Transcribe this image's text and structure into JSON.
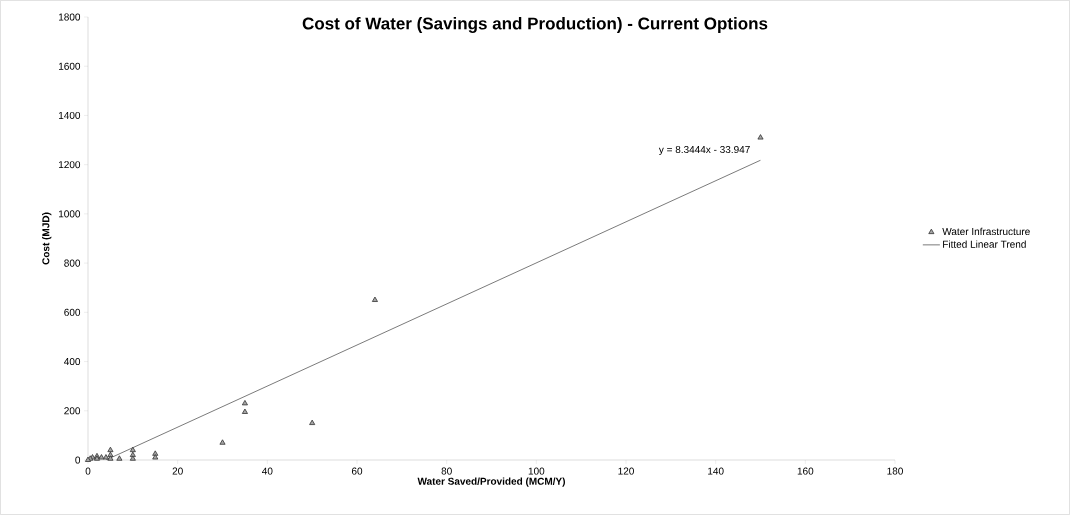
{
  "chart_data": {
    "type": "scatter",
    "title": "Cost of Water (Savings and Production) - Current Options",
    "xlabel": "Water Saved/Provided (MCM/Y)",
    "ylabel": "Cost (MJD)",
    "series": [
      {
        "name": "Water Infrastructure",
        "color": "#a6a6a6",
        "marker": "triangle",
        "x": [
          150,
          64,
          35,
          35,
          50,
          30,
          15,
          15,
          10,
          10,
          10,
          7,
          5,
          5,
          5,
          4,
          3,
          2,
          2,
          1,
          0.5,
          0
        ],
        "values": [
          1310,
          650,
          230,
          195,
          150,
          70,
          25,
          10,
          40,
          20,
          5,
          5,
          40,
          20,
          5,
          10,
          10,
          15,
          5,
          10,
          5,
          0
        ]
      },
      {
        "name": "Fitted Linear Trend",
        "type": "line",
        "color": "#595959",
        "marker": "none",
        "x": [
          4,
          150
        ],
        "values": [
          0,
          1218
        ]
      }
    ],
    "annotations": [
      {
        "text": "y = 8.3444x - 33.947",
        "x": 150,
        "y": 1218
      }
    ],
    "xlim": [
      0,
      180
    ],
    "ylim": [
      0,
      1800
    ],
    "xticks": [
      0,
      20,
      40,
      60,
      80,
      100,
      120,
      140,
      160,
      180
    ],
    "yticks": [
      0,
      200,
      400,
      600,
      800,
      1000,
      1200,
      1400,
      1600,
      1800
    ],
    "grid": false,
    "legend": "right"
  }
}
